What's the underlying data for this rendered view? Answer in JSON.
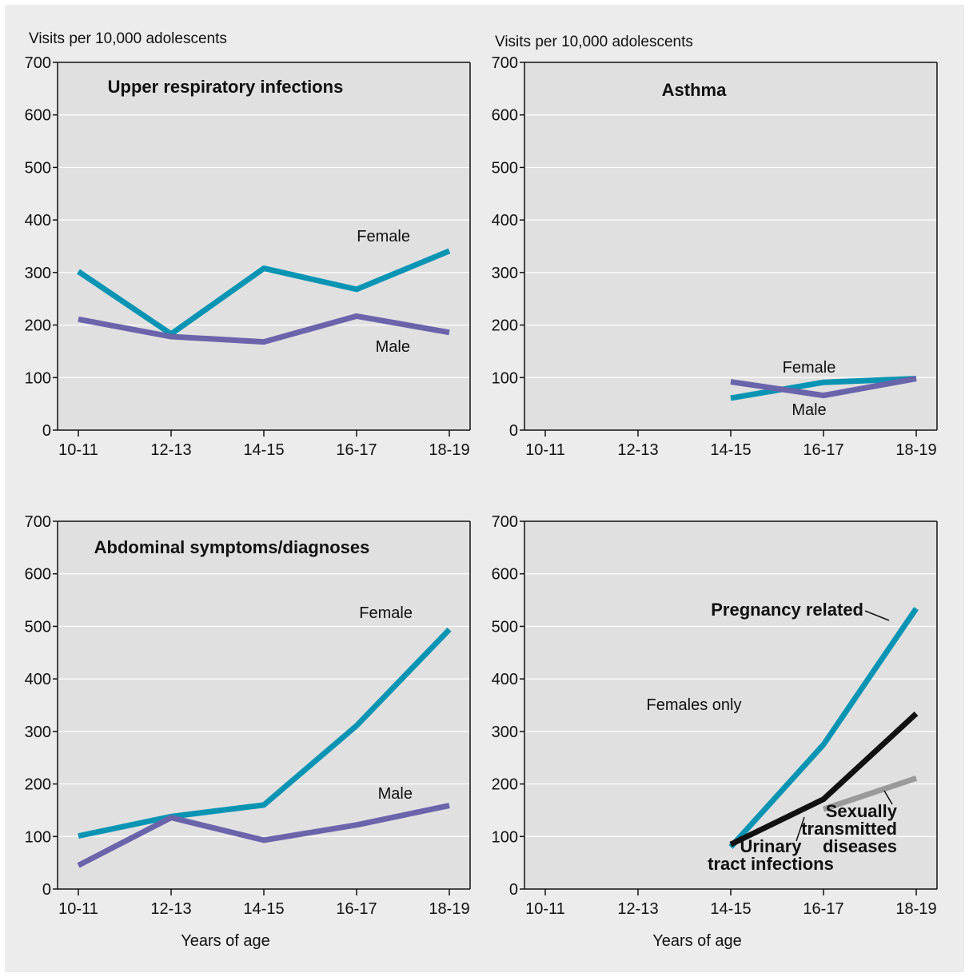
{
  "figure": {
    "background": "#ececec",
    "plot_background": "#e0e0e0"
  },
  "colors": {
    "female": "#0a94b3",
    "male": "#6a64ab",
    "uti": "#111111",
    "std": "#9a9a9a"
  },
  "chart_data": [
    {
      "type": "line",
      "title": "Upper respiratory infections",
      "ylabel": "Visits per 10,000 adolescents",
      "xlabel": "",
      "categories": [
        "10-11",
        "12-13",
        "14-15",
        "16-17",
        "18-19"
      ],
      "ylim": [
        0,
        700
      ],
      "yticks": [
        0,
        100,
        200,
        300,
        400,
        500,
        600,
        700
      ],
      "grid": true,
      "series": [
        {
          "name": "Female",
          "color": "#0a94b3",
          "values": [
            302,
            183,
            308,
            268,
            341
          ]
        },
        {
          "name": "Male",
          "color": "#6a64ab",
          "values": [
            211,
            178,
            168,
            217,
            186
          ]
        }
      ]
    },
    {
      "type": "line",
      "title": "Asthma",
      "ylabel": "Visits per 10,000 adolescents",
      "xlabel": "",
      "categories": [
        "10-11",
        "12-13",
        "14-15",
        "16-17",
        "18-19"
      ],
      "ylim": [
        0,
        700
      ],
      "yticks": [
        0,
        100,
        200,
        300,
        400,
        500,
        600,
        700
      ],
      "grid": true,
      "series": [
        {
          "name": "Female",
          "color": "#0a94b3",
          "values": [
            null,
            null,
            61,
            91,
            98
          ]
        },
        {
          "name": "Male",
          "color": "#6a64ab",
          "values": [
            null,
            null,
            92,
            66,
            98
          ]
        }
      ]
    },
    {
      "type": "line",
      "title": "Abdominal symptoms/diagnoses",
      "ylabel": "",
      "xlabel": "Years of age",
      "categories": [
        "10-11",
        "12-13",
        "14-15",
        "16-17",
        "18-19"
      ],
      "ylim": [
        0,
        700
      ],
      "yticks": [
        0,
        100,
        200,
        300,
        400,
        500,
        600,
        700
      ],
      "grid": true,
      "series": [
        {
          "name": "Female",
          "color": "#0a94b3",
          "values": [
            101,
            138,
            160,
            311,
            494
          ]
        },
        {
          "name": "Male",
          "color": "#6a64ab",
          "values": [
            45,
            136,
            93,
            122,
            159
          ]
        }
      ]
    },
    {
      "type": "line",
      "title": "",
      "ylabel": "",
      "xlabel": "Years of age",
      "annotation": "Females only",
      "categories": [
        "10-11",
        "12-13",
        "14-15",
        "16-17",
        "18-19"
      ],
      "ylim": [
        0,
        700
      ],
      "yticks": [
        0,
        100,
        200,
        300,
        400,
        500,
        600,
        700
      ],
      "grid": true,
      "series": [
        {
          "name": "Pregnancy related",
          "color": "#0a94b3",
          "values": [
            null,
            null,
            80,
            275,
            534
          ]
        },
        {
          "name": "Urinary tract infections",
          "color": "#111111",
          "values": [
            null,
            null,
            85,
            171,
            334
          ]
        },
        {
          "name": "Sexually transmitted diseases",
          "color": "#9a9a9a",
          "values": [
            null,
            null,
            null,
            152,
            211
          ]
        }
      ]
    }
  ]
}
